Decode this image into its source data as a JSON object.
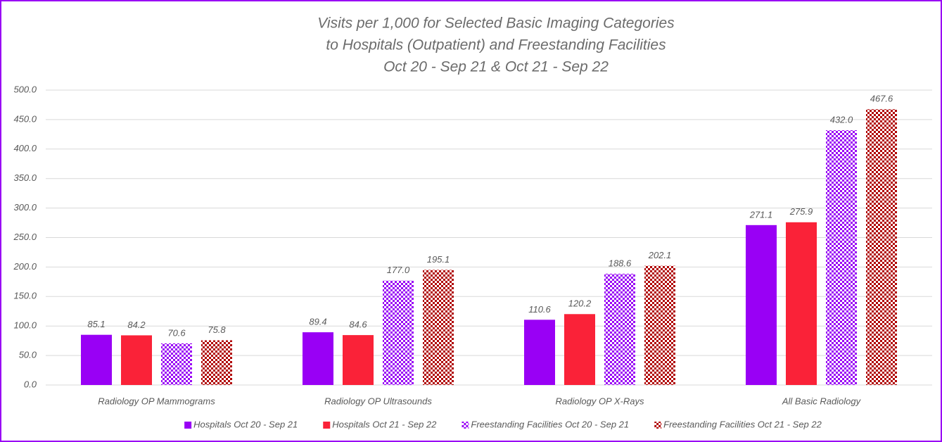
{
  "chart_data": {
    "type": "bar",
    "title": [
      "Visits per 1,000 for Selected Basic Imaging Categories",
      "to Hospitals (Outpatient) and Freestanding Facilities",
      "Oct 20 - Sep 21 & Oct 21 - Sep 22"
    ],
    "categories": [
      "Radiology OP Mammograms",
      "Radiology OP Ultrasounds",
      "Radiology OP X-Rays",
      "All Basic Radiology"
    ],
    "series": [
      {
        "name": "Hospitals Oct 20 - Sep 21",
        "color": "#9900f5",
        "pattern": "solid",
        "values": [
          85.1,
          89.4,
          110.6,
          271.1
        ],
        "value_labels": [
          "85.1",
          "89.4",
          "110.6",
          "271.1"
        ]
      },
      {
        "name": "Hospitals Oct 21 - Sep 22",
        "color": "#fa2238",
        "pattern": "solid",
        "values": [
          84.2,
          84.6,
          120.2,
          275.9
        ],
        "value_labels": [
          "84.2",
          "84.6",
          "120.2",
          "275.9"
        ]
      },
      {
        "name": "Freestanding Facilities Oct 20 - Sep 21",
        "color": "#9900f5",
        "pattern": "checker",
        "values": [
          70.6,
          177.0,
          188.6,
          432.0
        ],
        "value_labels": [
          "70.6",
          "177.0",
          "188.6",
          "432.0"
        ]
      },
      {
        "name": "Freestanding Facilities Oct 21 - Sep 22",
        "color": "#b00000",
        "pattern": "checker",
        "values": [
          75.8,
          195.1,
          202.1,
          467.6
        ],
        "value_labels": [
          "75.8",
          "195.1",
          "202.1",
          "467.6"
        ]
      }
    ],
    "ylim": [
      0,
      500
    ],
    "yticks": [
      {
        "value": 0,
        "label": "0.0"
      },
      {
        "value": 50,
        "label": "50.0"
      },
      {
        "value": 100,
        "label": "100.0"
      },
      {
        "value": 150,
        "label": "150.0"
      },
      {
        "value": 200,
        "label": "200.0"
      },
      {
        "value": 250,
        "label": "250.0"
      },
      {
        "value": 300,
        "label": "300.0"
      },
      {
        "value": 350,
        "label": "350.0"
      },
      {
        "value": 400,
        "label": "400.0"
      },
      {
        "value": 450,
        "label": "450.0"
      },
      {
        "value": 500,
        "label": "500.0"
      }
    ],
    "grid": true,
    "legend": "bottom"
  }
}
